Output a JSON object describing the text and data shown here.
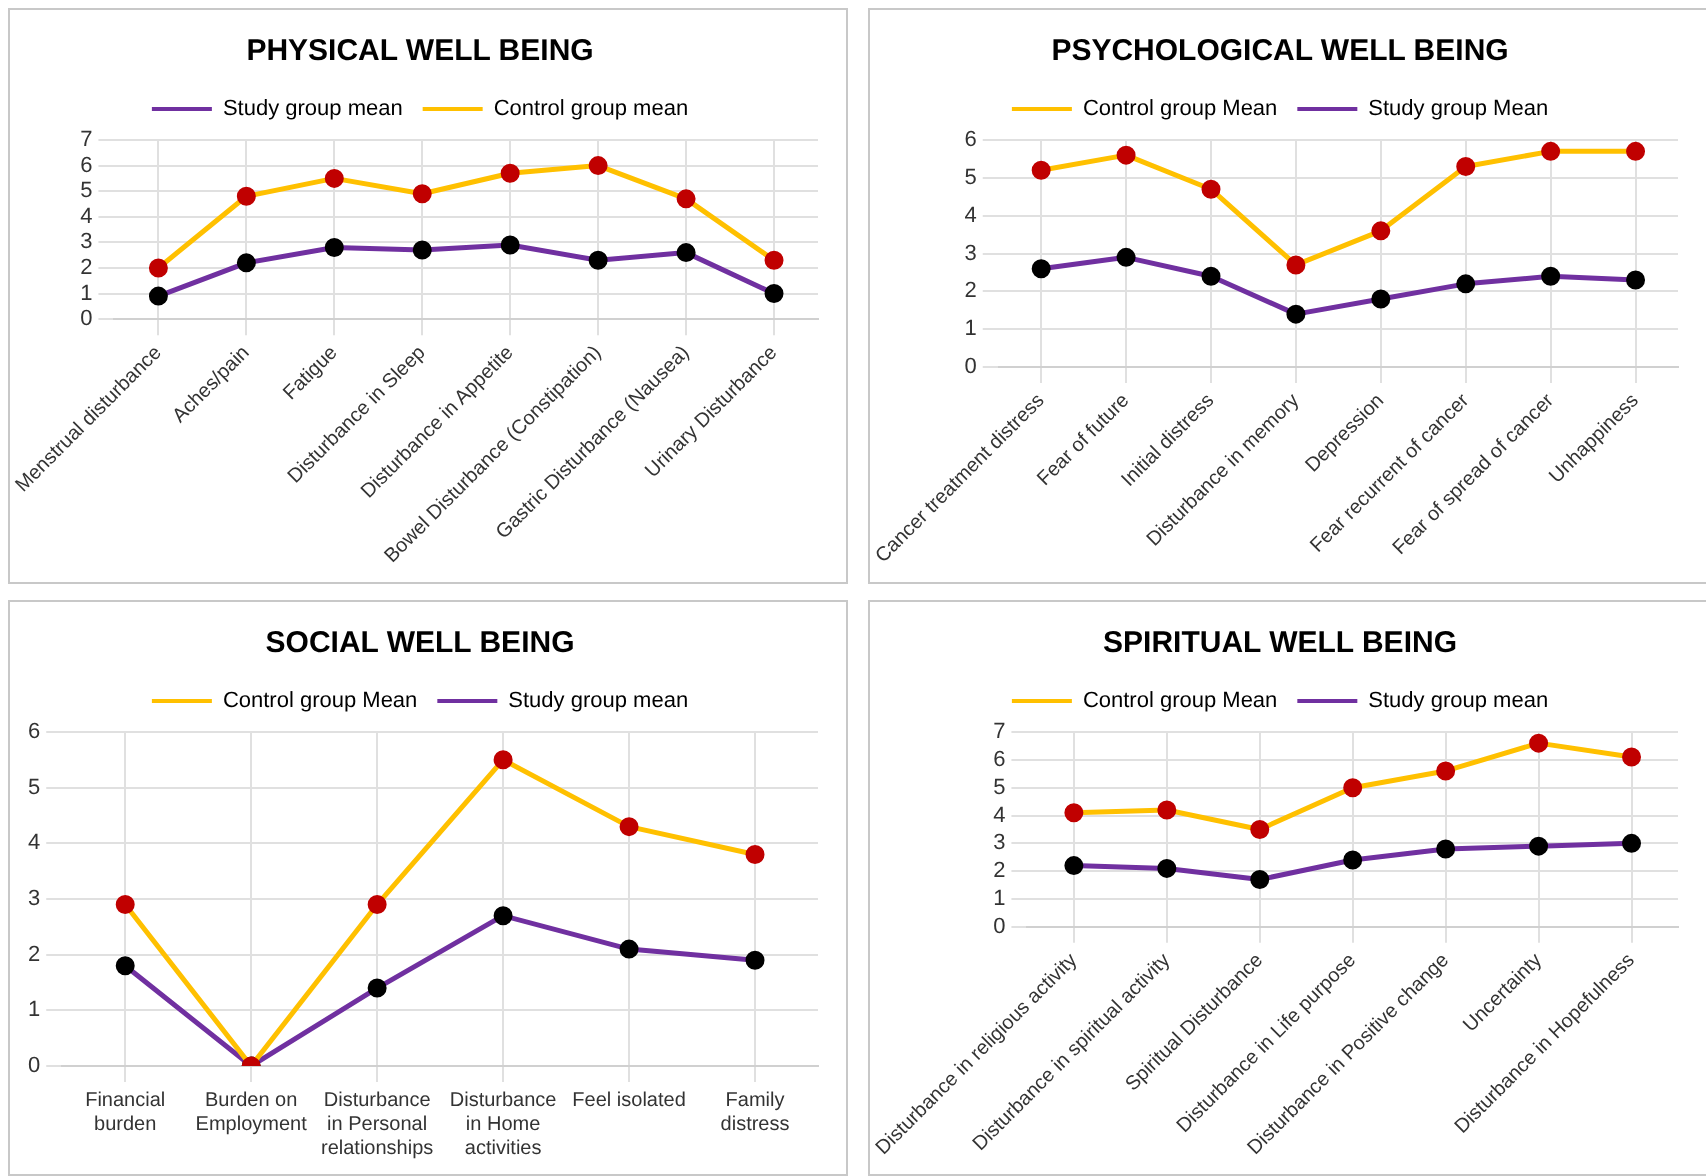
{
  "chart_data": [
    {
      "type": "line",
      "title": "PHYSICAL WELL BEING",
      "categories": [
        "Menstrual disturbance",
        "Aches/pain",
        "Fatigue",
        "Disturbance in Sleep",
        "Disturbance in Appetite",
        "Bowel Disturbance (Constipation)",
        "Gastric Disturbance (Nausea)",
        "Urinary Disturbance"
      ],
      "series": [
        {
          "name": "Study group mean",
          "color": "#7030a0",
          "colors": [
            "#000000",
            "#000000",
            "#000000",
            "#000000",
            "#000000",
            "#000000",
            "#000000",
            "#000000"
          ],
          "values": [
            0.9,
            2.2,
            2.8,
            2.7,
            2.9,
            2.3,
            2.6,
            1.0
          ]
        },
        {
          "name": "Control group mean",
          "color": "#ffc000",
          "colors": [
            "#c00000",
            "#c00000",
            "#c00000",
            "#c00000",
            "#c00000",
            "#c00000",
            "#c00000",
            "#c00000"
          ],
          "values": [
            2.0,
            4.8,
            5.5,
            4.9,
            5.7,
            6.0,
            4.7,
            2.3
          ]
        }
      ],
      "ylim": [
        0,
        7
      ],
      "yticks": [
        0,
        1,
        2,
        3,
        4,
        5,
        6,
        7
      ],
      "grid": true,
      "legend": "top",
      "marker": "circle"
    },
    {
      "type": "line",
      "title": "PSYCHOLOGICAL WELL BEING",
      "categories": [
        "Cancer treatment distress",
        "Fear of future",
        "Initial distress",
        "Disturbance in memory",
        "Depression",
        "Fear recurrent of cancer",
        "Fear of spread of cancer",
        "Unhappiness"
      ],
      "series": [
        {
          "name": "Control group Mean",
          "color": "#ffc000",
          "colors": [
            "#c00000",
            "#c00000",
            "#c00000",
            "#c00000",
            "#c00000",
            "#c00000",
            "#c00000",
            "#c00000"
          ],
          "values": [
            5.2,
            5.6,
            4.7,
            2.7,
            3.6,
            5.3,
            5.7,
            5.7
          ]
        },
        {
          "name": "Study group Mean",
          "color": "#7030a0",
          "colors": [
            "#000000",
            "#000000",
            "#000000",
            "#000000",
            "#000000",
            "#000000",
            "#000000",
            "#000000"
          ],
          "values": [
            2.6,
            2.9,
            2.4,
            1.4,
            1.8,
            2.2,
            2.4,
            2.3
          ]
        }
      ],
      "ylim": [
        0,
        6
      ],
      "yticks": [
        0,
        1,
        2,
        3,
        4,
        5,
        6
      ],
      "grid": true,
      "legend": "top",
      "marker": "circle"
    },
    {
      "type": "line",
      "title": "SOCIAL WELL BEING",
      "categories": [
        "Financial burden",
        "Burden on Employment",
        "Disturbance in Personal relationships",
        "Disturbance in Home activities",
        "Feel isolated",
        "Family distress"
      ],
      "series": [
        {
          "name": "Control group Mean",
          "color": "#ffc000",
          "colors": [
            "#c00000",
            "#c00000",
            "#c00000",
            "#c00000",
            "#c00000",
            "#c00000"
          ],
          "values": [
            2.9,
            0,
            2.9,
            5.5,
            4.3,
            3.8
          ]
        },
        {
          "name": "Study group mean",
          "color": "#7030a0",
          "colors": [
            "#000000",
            "#000000",
            "#000000",
            "#000000",
            "#000000",
            "#000000"
          ],
          "values": [
            1.8,
            0,
            1.4,
            2.7,
            2.1,
            1.9
          ]
        }
      ],
      "ylim": [
        0,
        6
      ],
      "yticks": [
        0,
        1,
        2,
        3,
        4,
        5,
        6
      ],
      "grid": true,
      "legend": "top",
      "marker": "circle"
    },
    {
      "type": "line",
      "title": "SPIRITUAL WELL BEING",
      "categories": [
        "Disturbance in religious activity",
        "Disturbance in spiritual activity",
        "Spiritual Disturbance",
        "Disturbance in Life purpose",
        "Disturbance in Positive change",
        "Uncertainty",
        "Disturbance in Hopefulness"
      ],
      "series": [
        {
          "name": "Control group Mean",
          "color": "#ffc000",
          "colors": [
            "#c00000",
            "#c00000",
            "#c00000",
            "#c00000",
            "#c00000",
            "#c00000",
            "#c00000"
          ],
          "values": [
            4.1,
            4.2,
            3.5,
            5.0,
            5.6,
            6.6,
            6.1
          ]
        },
        {
          "name": "Study group mean",
          "color": "#7030a0",
          "colors": [
            "#000000",
            "#000000",
            "#000000",
            "#000000",
            "#000000",
            "#000000",
            "#000000"
          ],
          "values": [
            2.2,
            2.1,
            1.7,
            2.4,
            2.8,
            2.9,
            3.0
          ]
        }
      ],
      "ylim": [
        0,
        7
      ],
      "yticks": [
        0,
        1,
        2,
        3,
        4,
        5,
        6,
        7
      ],
      "grid": true,
      "legend": "top",
      "marker": "circle"
    }
  ]
}
